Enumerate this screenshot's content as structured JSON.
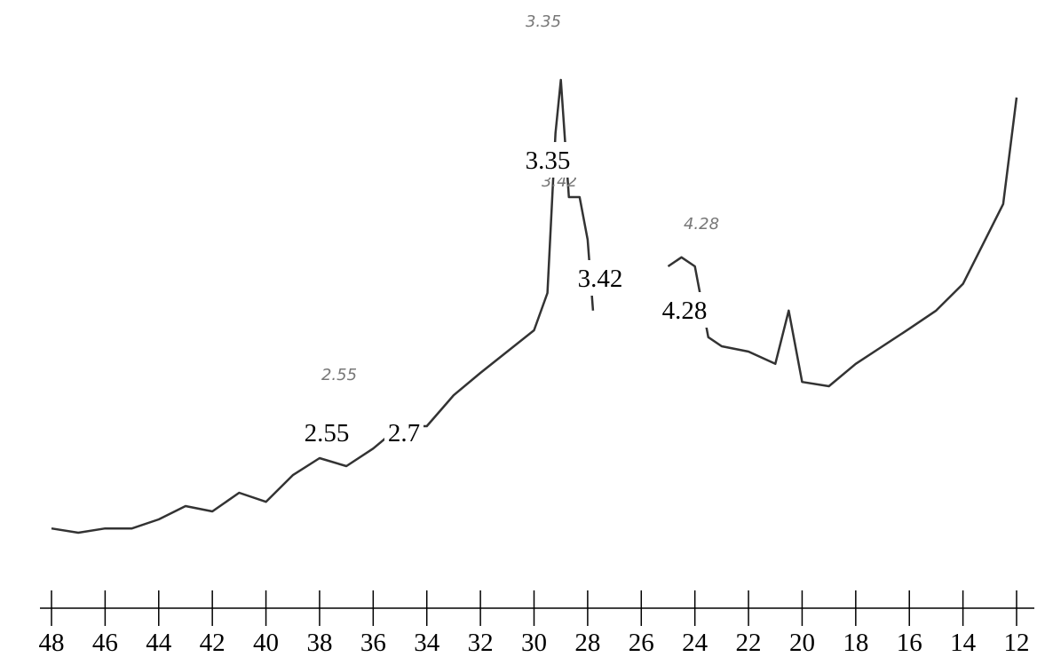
{
  "chart_data": {
    "type": "line",
    "x": [
      48,
      47,
      46,
      45,
      44,
      43,
      42,
      41,
      40,
      39,
      38,
      37,
      36,
      35,
      34,
      33,
      32,
      31,
      30,
      29.5,
      29.2,
      29,
      28.7,
      28.3,
      28,
      27.8,
      27,
      25,
      24.5,
      24,
      23.5,
      23,
      22,
      21,
      20.5,
      20,
      19,
      18,
      17,
      16,
      15,
      14,
      13,
      12.5,
      12
    ],
    "series": [
      {
        "color": "#333333",
        "values": [
          10.8,
          10,
          10.8,
          10.8,
          12.5,
          15,
          14,
          17.5,
          15.8,
          20.8,
          24,
          22.5,
          25.8,
          30,
          30,
          35.8,
          40,
          44,
          48,
          55,
          85,
          95,
          73,
          73,
          65,
          51.7,
          null,
          60,
          61.7,
          60,
          46.7,
          45,
          44,
          41.7,
          51.7,
          38.3,
          37.5,
          41.7,
          45,
          48.3,
          51.7,
          56.7,
          66.7,
          71.7,
          91.7
        ]
      }
    ],
    "xlim": [
      48,
      12
    ],
    "ylim": [
      0,
      100
    ],
    "xticks": [
      48,
      46,
      44,
      42,
      40,
      38,
      36,
      34,
      32,
      30,
      28,
      26,
      24,
      22,
      20,
      18,
      16,
      14,
      12
    ],
    "annotations": [
      "3.35",
      "3.42",
      "4.28",
      "2.55",
      "2.7"
    ],
    "handwritten_annotations": [
      "3.35",
      "3.42",
      "4.28",
      "2.55"
    ]
  }
}
